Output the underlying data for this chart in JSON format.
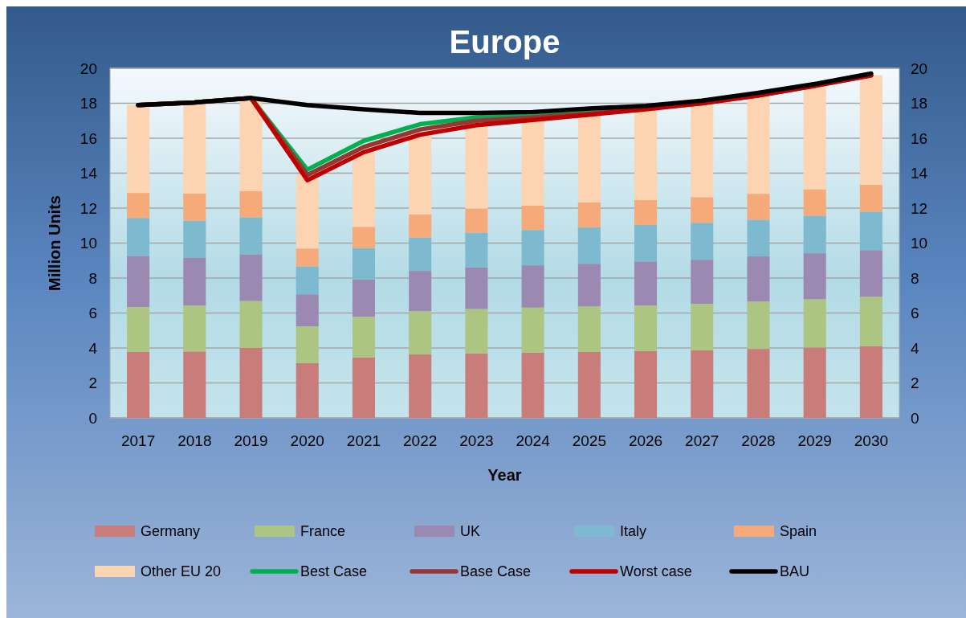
{
  "chart_data": {
    "type": "bar",
    "title": "Europe",
    "xlabel": "Year",
    "ylabel": "Million Units",
    "categories": [
      "2017",
      "2018",
      "2019",
      "2020",
      "2021",
      "2022",
      "2023",
      "2024",
      "2025",
      "2026",
      "2027",
      "2028",
      "2029",
      "2030"
    ],
    "stacked": true,
    "ylim": [
      0,
      20
    ],
    "yticks": [
      0,
      2,
      4,
      6,
      8,
      10,
      12,
      14,
      16,
      18,
      20
    ],
    "y2lim": [
      0,
      20
    ],
    "y2ticks": [
      0,
      2,
      4,
      6,
      8,
      10,
      12,
      14,
      16,
      18,
      20
    ],
    "grid": "y",
    "legend": "bottom",
    "series": [
      {
        "name": "Germany",
        "color": "#c87d7b",
        "values": [
          3.77,
          3.8,
          4.0,
          3.13,
          3.45,
          3.63,
          3.69,
          3.73,
          3.77,
          3.82,
          3.86,
          3.95,
          4.03,
          4.11
        ]
      },
      {
        "name": "France",
        "color": "#adc583",
        "values": [
          2.57,
          2.63,
          2.69,
          2.11,
          2.34,
          2.48,
          2.54,
          2.58,
          2.61,
          2.61,
          2.66,
          2.71,
          2.76,
          2.82
        ]
      },
      {
        "name": "UK",
        "color": "#9c89b2",
        "values": [
          2.93,
          2.72,
          2.67,
          1.83,
          2.13,
          2.3,
          2.38,
          2.42,
          2.44,
          2.52,
          2.53,
          2.58,
          2.63,
          2.67
        ]
      },
      {
        "name": "Italy",
        "color": "#7db9cf",
        "values": [
          2.17,
          2.13,
          2.12,
          1.6,
          1.79,
          1.91,
          1.99,
          2.02,
          2.08,
          2.09,
          2.11,
          2.1,
          2.15,
          2.2
        ]
      },
      {
        "name": "Spain",
        "color": "#f6aa7a",
        "values": [
          1.43,
          1.56,
          1.5,
          1.02,
          1.22,
          1.33,
          1.37,
          1.4,
          1.44,
          1.42,
          1.47,
          1.48,
          1.51,
          1.54
        ]
      },
      {
        "name": "Other EU 20",
        "color": "#fcd4b2",
        "values": [
          5.02,
          5.08,
          5.17,
          4.23,
          4.27,
          4.55,
          4.73,
          4.85,
          4.97,
          5.16,
          5.32,
          5.59,
          5.91,
          6.26
        ]
      },
      {
        "name": "Best Case",
        "type": "line",
        "color": "#00b050",
        "values": [
          17.9,
          18.05,
          18.3,
          14.2,
          15.85,
          16.8,
          17.2,
          17.35,
          17.55,
          17.75,
          null,
          null,
          null,
          null
        ]
      },
      {
        "name": "Base Case",
        "type": "line",
        "color": "#953735",
        "values": [
          17.9,
          18.05,
          18.3,
          13.9,
          15.5,
          16.5,
          17.0,
          17.2,
          17.4,
          17.7,
          18.0,
          18.45,
          19.0,
          19.6
        ]
      },
      {
        "name": "Worst case",
        "type": "line",
        "color": "#c00000",
        "values": [
          17.9,
          18.05,
          18.3,
          13.6,
          15.2,
          16.2,
          16.75,
          17.05,
          17.35,
          17.65,
          18.0,
          18.45,
          19.0,
          19.6
        ]
      },
      {
        "name": "BAU",
        "type": "line",
        "color": "#000000",
        "values": [
          17.9,
          18.05,
          18.3,
          17.9,
          17.65,
          17.45,
          17.45,
          17.5,
          17.7,
          17.85,
          18.15,
          18.6,
          19.1,
          19.7
        ]
      }
    ]
  }
}
